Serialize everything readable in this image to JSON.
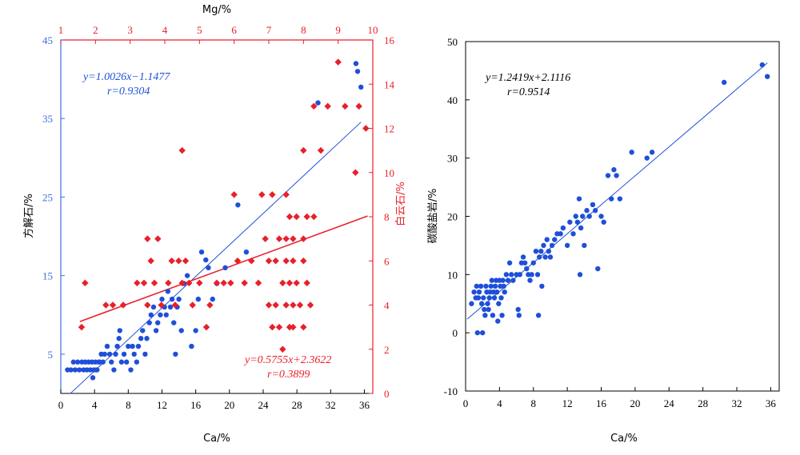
{
  "colors": {
    "blue": "#1f4fd8",
    "red": "#e8202a",
    "axis": "#000000"
  },
  "chart_data": [
    {
      "type": "scatter",
      "title": "",
      "xlabel": "Ca/%",
      "ylabel": "方解石/%",
      "top_xlabel": "Mg/%",
      "right_ylabel": "白云石/%",
      "xlim": [
        0,
        37
      ],
      "ylim": [
        0,
        45
      ],
      "top_xlim": [
        1,
        10
      ],
      "right_ylim": [
        0,
        16
      ],
      "x_ticks": [
        0,
        4,
        8,
        12,
        16,
        20,
        24,
        28,
        32,
        36
      ],
      "y_ticks": [
        5,
        15,
        25,
        35,
        45
      ],
      "top_ticks": [
        1,
        2,
        3,
        4,
        5,
        6,
        7,
        8,
        9,
        10
      ],
      "right_ticks": [
        0,
        2,
        4,
        6,
        8,
        10,
        12,
        14,
        16
      ],
      "series": [
        {
          "role": "calcite",
          "marker": "circle",
          "color": "#1f4fd8",
          "points": [
            [
              0.8,
              3
            ],
            [
              1.2,
              3
            ],
            [
              1.5,
              4
            ],
            [
              1.7,
              3
            ],
            [
              2,
              4
            ],
            [
              2.2,
              3
            ],
            [
              2.5,
              4
            ],
            [
              2.7,
              3
            ],
            [
              2.9,
              4
            ],
            [
              3.1,
              3
            ],
            [
              3.3,
              4
            ],
            [
              3.5,
              3
            ],
            [
              3.7,
              4
            ],
            [
              3.9,
              3
            ],
            [
              4.1,
              4
            ],
            [
              4.3,
              3
            ],
            [
              4.5,
              4
            ],
            [
              3.8,
              2
            ],
            [
              4.2,
              3
            ],
            [
              4.6,
              4
            ],
            [
              4.8,
              5
            ],
            [
              5,
              4
            ],
            [
              5.2,
              5
            ],
            [
              5.5,
              6
            ],
            [
              5.8,
              5
            ],
            [
              6,
              4
            ],
            [
              6.3,
              3
            ],
            [
              6.5,
              5
            ],
            [
              6.7,
              6
            ],
            [
              6.9,
              7
            ],
            [
              7,
              8
            ],
            [
              7.2,
              4
            ],
            [
              7.5,
              5
            ],
            [
              7.8,
              4
            ],
            [
              8,
              6
            ],
            [
              8.3,
              3
            ],
            [
              8.5,
              6
            ],
            [
              8.7,
              5
            ],
            [
              9,
              4
            ],
            [
              9.2,
              6
            ],
            [
              9.5,
              7
            ],
            [
              9.7,
              8
            ],
            [
              10,
              5
            ],
            [
              10.2,
              7
            ],
            [
              10.5,
              9
            ],
            [
              10.7,
              10
            ],
            [
              11,
              11
            ],
            [
              11.3,
              8
            ],
            [
              11.5,
              9
            ],
            [
              11.8,
              10
            ],
            [
              12,
              12
            ],
            [
              12.3,
              11
            ],
            [
              12.5,
              10
            ],
            [
              12.7,
              13
            ],
            [
              13,
              11
            ],
            [
              13.2,
              12
            ],
            [
              13.4,
              9
            ],
            [
              13.6,
              5
            ],
            [
              13.8,
              11
            ],
            [
              14,
              12
            ],
            [
              14.3,
              8
            ],
            [
              14.6,
              14
            ],
            [
              15,
              15
            ],
            [
              15.5,
              6
            ],
            [
              16,
              8
            ],
            [
              16.3,
              12
            ],
            [
              16.7,
              18
            ],
            [
              17.2,
              17
            ],
            [
              17.5,
              16
            ],
            [
              18,
              12
            ],
            [
              18.5,
              14
            ],
            [
              19.5,
              16
            ],
            [
              21,
              24
            ],
            [
              22,
              18
            ],
            [
              30.5,
              37
            ],
            [
              35,
              42
            ],
            [
              35.2,
              41
            ],
            [
              35.6,
              39
            ]
          ]
        },
        {
          "role": "dolomite",
          "marker": "diamond",
          "color": "#e8202a",
          "axis": "top-right",
          "points": [
            [
              1.6,
              3
            ],
            [
              1.7,
              5
            ],
            [
              2.3,
              4
            ],
            [
              2.5,
              4
            ],
            [
              2.8,
              4
            ],
            [
              3.2,
              5
            ],
            [
              3.4,
              5
            ],
            [
              3.5,
              4
            ],
            [
              3.6,
              6
            ],
            [
              3.7,
              5
            ],
            [
              3.8,
              7
            ],
            [
              3.9,
              4
            ],
            [
              4.1,
              5
            ],
            [
              4.2,
              6
            ],
            [
              4.3,
              4
            ],
            [
              4.4,
              6
            ],
            [
              4.5,
              5
            ],
            [
              4.6,
              6
            ],
            [
              4.7,
              5
            ],
            [
              4.8,
              4
            ],
            [
              5,
              5
            ],
            [
              5.2,
              3
            ],
            [
              5.3,
              4
            ],
            [
              5.5,
              5
            ],
            [
              5.7,
              5
            ],
            [
              5.9,
              5
            ],
            [
              6,
              9
            ],
            [
              6.1,
              6
            ],
            [
              6.3,
              5
            ],
            [
              6.5,
              6
            ],
            [
              6.7,
              5
            ],
            [
              6.8,
              9
            ],
            [
              6.9,
              7
            ],
            [
              7,
              4
            ],
            [
              7,
              6
            ],
            [
              7.1,
              3
            ],
            [
              7.1,
              9
            ],
            [
              7.2,
              4
            ],
            [
              7.2,
              6
            ],
            [
              7.3,
              3
            ],
            [
              7.3,
              7
            ],
            [
              7.4,
              2
            ],
            [
              7.4,
              5
            ],
            [
              7.5,
              4
            ],
            [
              7.5,
              6
            ],
            [
              7.5,
              7
            ],
            [
              7.5,
              9
            ],
            [
              7.6,
              3
            ],
            [
              7.6,
              5
            ],
            [
              7.6,
              8
            ],
            [
              7.7,
              3
            ],
            [
              7.7,
              4
            ],
            [
              7.7,
              6
            ],
            [
              7.7,
              7
            ],
            [
              7.8,
              5
            ],
            [
              7.8,
              8
            ],
            [
              7.9,
              4
            ],
            [
              8,
              3
            ],
            [
              8,
              6
            ],
            [
              8,
              7
            ],
            [
              8,
              11
            ],
            [
              8.1,
              5
            ],
            [
              8.1,
              8
            ],
            [
              8.2,
              4
            ],
            [
              8.3,
              8
            ],
            [
              8.3,
              13
            ],
            [
              8.5,
              11
            ],
            [
              8.7,
              13
            ],
            [
              9,
              15
            ],
            [
              9.2,
              13
            ],
            [
              9.5,
              10
            ],
            [
              9.6,
              13
            ],
            [
              9.8,
              12
            ],
            [
              4.5,
              11
            ],
            [
              3.5,
              7
            ]
          ]
        }
      ],
      "fits": [
        {
          "label_line1": "y=1.0026x−1.1477",
          "label_line2": "r=0.9304",
          "color": "#1f4fd8",
          "slope": 1.0026,
          "intercept": -1.1477,
          "x_range": [
            1.1,
            35.6
          ],
          "axis": "bottom-left"
        },
        {
          "label_line1": "y=0.5755x+2.3622",
          "label_line2": "r=0.3899",
          "color": "#e8202a",
          "slope": 0.5755,
          "intercept": 2.3622,
          "x_range": [
            1.55,
            9.85
          ],
          "axis": "top-right"
        }
      ]
    },
    {
      "type": "scatter",
      "title": "",
      "xlabel": "Ca/%",
      "ylabel": "碳酸盐岩/%",
      "xlim": [
        0,
        37
      ],
      "ylim": [
        -10,
        50
      ],
      "x_ticks": [
        0,
        4,
        8,
        12,
        16,
        20,
        24,
        28,
        32,
        36
      ],
      "y_ticks": [
        -10,
        0,
        10,
        20,
        30,
        40,
        50
      ],
      "series": [
        {
          "role": "carbonate",
          "marker": "circle",
          "color": "#1f4fd8",
          "points": [
            [
              0.7,
              5
            ],
            [
              1,
              7
            ],
            [
              1.2,
              6
            ],
            [
              1.3,
              8
            ],
            [
              1.4,
              0
            ],
            [
              1.5,
              6
            ],
            [
              1.6,
              7
            ],
            [
              1.8,
              8
            ],
            [
              1.9,
              5
            ],
            [
              2,
              0
            ],
            [
              2.1,
              6
            ],
            [
              2.2,
              4
            ],
            [
              2.3,
              3
            ],
            [
              2.4,
              8
            ],
            [
              2.5,
              7
            ],
            [
              2.6,
              5
            ],
            [
              2.7,
              4
            ],
            [
              2.8,
              6
            ],
            [
              2.9,
              7
            ],
            [
              3,
              8
            ],
            [
              3.1,
              9
            ],
            [
              3.2,
              3
            ],
            [
              3.3,
              7
            ],
            [
              3.4,
              6
            ],
            [
              3.5,
              8
            ],
            [
              3.6,
              9
            ],
            [
              3.7,
              7
            ],
            [
              3.8,
              2
            ],
            [
              3.9,
              5
            ],
            [
              4,
              9
            ],
            [
              4.1,
              8
            ],
            [
              4.2,
              6
            ],
            [
              4.3,
              3
            ],
            [
              4.4,
              9
            ],
            [
              4.5,
              8
            ],
            [
              4.6,
              7
            ],
            [
              4.8,
              10
            ],
            [
              5,
              9
            ],
            [
              5.2,
              12
            ],
            [
              5.4,
              10
            ],
            [
              5.6,
              9
            ],
            [
              6,
              10
            ],
            [
              6.2,
              4
            ],
            [
              6.3,
              3
            ],
            [
              6.4,
              10
            ],
            [
              6.6,
              12
            ],
            [
              6.8,
              13
            ],
            [
              7,
              12
            ],
            [
              7.2,
              11
            ],
            [
              7.4,
              10
            ],
            [
              7.6,
              9
            ],
            [
              7.8,
              10
            ],
            [
              8,
              12
            ],
            [
              8.3,
              14
            ],
            [
              8.5,
              10
            ],
            [
              8.6,
              3
            ],
            [
              8.7,
              13
            ],
            [
              8.9,
              14
            ],
            [
              9,
              8
            ],
            [
              9.2,
              15
            ],
            [
              9.4,
              13
            ],
            [
              9.6,
              16
            ],
            [
              9.8,
              14
            ],
            [
              10,
              13
            ],
            [
              10.2,
              15
            ],
            [
              10.5,
              16
            ],
            [
              10.8,
              17
            ],
            [
              11.2,
              17
            ],
            [
              11.5,
              18
            ],
            [
              12,
              15
            ],
            [
              12.3,
              19
            ],
            [
              12.7,
              17
            ],
            [
              13,
              20
            ],
            [
              13.2,
              19
            ],
            [
              13.4,
              23
            ],
            [
              13.5,
              10
            ],
            [
              13.6,
              18
            ],
            [
              13.8,
              20
            ],
            [
              14,
              15
            ],
            [
              14.3,
              21
            ],
            [
              14.6,
              20
            ],
            [
              15,
              22
            ],
            [
              15.3,
              21
            ],
            [
              15.6,
              11
            ],
            [
              16,
              20
            ],
            [
              16.3,
              19
            ],
            [
              16.8,
              27
            ],
            [
              17.2,
              23
            ],
            [
              17.5,
              28
            ],
            [
              17.8,
              27
            ],
            [
              18.2,
              23
            ],
            [
              19.6,
              31
            ],
            [
              21.4,
              30
            ],
            [
              22,
              31
            ],
            [
              30.5,
              43
            ],
            [
              35,
              46
            ],
            [
              35.6,
              44
            ]
          ]
        }
      ],
      "fits": [
        {
          "label_line1": "y=1.2419x+2.1116",
          "label_line2": "r=0.9514",
          "color": "#1f4fd8",
          "slope": 1.2419,
          "intercept": 2.1116,
          "x_range": [
            0.2,
            35.6
          ]
        }
      ]
    }
  ]
}
